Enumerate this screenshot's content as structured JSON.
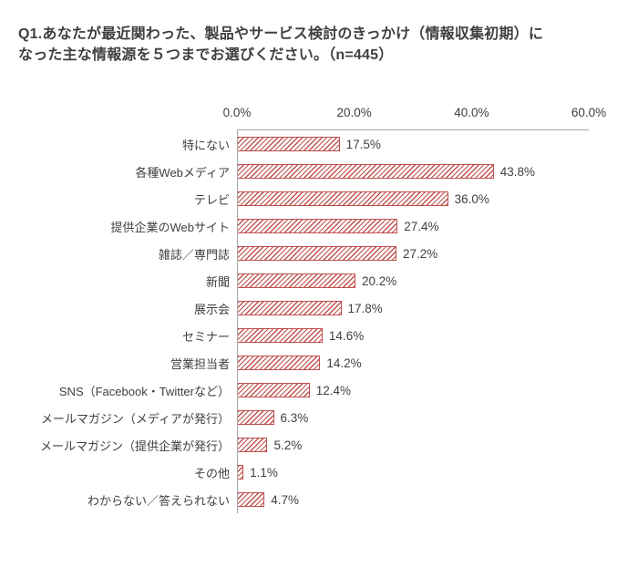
{
  "title": {
    "line1": "Q1.あなたが最近関わった、製品やサービス検討のきっかけ（情報収集初期）に",
    "line2": "なった主な情報源を５つまでお選びください。（n=445）"
  },
  "chart_data": {
    "type": "bar",
    "orientation": "horizontal",
    "title": "Q1.あなたが最近関わった、製品やサービス検討のきっかけ（情報収集初期）になった主な情報源を５つまでお選びください。（n=445）",
    "n": 445,
    "categories": [
      "特にない",
      "各種Webメディア",
      "テレビ",
      "提供企業のWebサイト",
      "雑誌／専門誌",
      "新聞",
      "展示会",
      "セミナー",
      "営業担当者",
      "SNS（Facebook・Twitterなど）",
      "メールマガジン（メディアが発行）",
      "メールマガジン（提供企業が発行）",
      "その他",
      "わからない／答えられない"
    ],
    "values": [
      17.5,
      43.8,
      36.0,
      27.4,
      27.2,
      20.2,
      17.8,
      14.6,
      14.2,
      12.4,
      6.3,
      5.2,
      1.1,
      4.7
    ],
    "value_suffix": "%",
    "xlim": [
      0,
      60
    ],
    "x_ticks": [
      "0.0%",
      "20.0%",
      "40.0%",
      "60.0%"
    ],
    "grid": false,
    "bar_style": "hatched-diagonal",
    "legend": "none",
    "colors": {
      "bar": "#c0504d",
      "axis_line": "#a6a6a6",
      "text": "#404040",
      "title": "#404040"
    }
  }
}
